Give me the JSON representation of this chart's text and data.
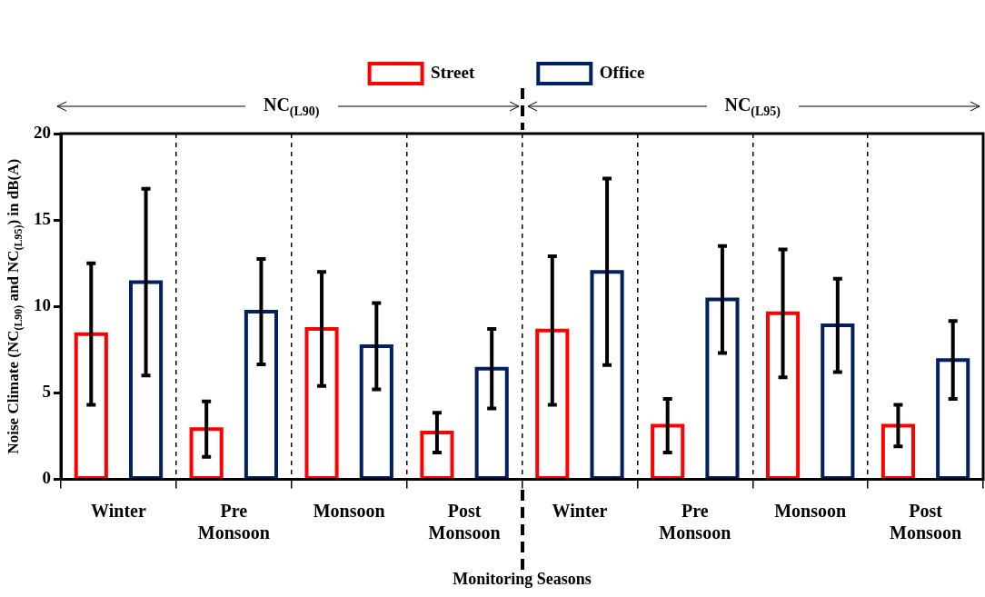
{
  "chart_data": {
    "type": "bar",
    "categories": [
      "Winter",
      "Pre Monsoon",
      "Monsoon",
      "Post Monsoon",
      "Winter",
      "Pre Monsoon",
      "Monsoon",
      "Post Monsoon"
    ],
    "series": [
      {
        "name": "Street",
        "color": "#ff0000",
        "values": [
          8.4,
          2.9,
          8.7,
          2.7,
          8.6,
          3.1,
          9.6,
          3.1
        ],
        "errors": [
          4.1,
          1.6,
          3.3,
          1.15,
          4.3,
          1.55,
          3.7,
          1.2
        ]
      },
      {
        "name": "Office",
        "color": "#002060",
        "values": [
          11.4,
          9.7,
          7.7,
          6.4,
          12.0,
          10.4,
          8.9,
          6.9
        ],
        "errors": [
          5.4,
          3.05,
          2.5,
          2.3,
          5.4,
          3.1,
          2.7,
          2.25
        ]
      }
    ],
    "xlabel": "Monitoring Seasons",
    "ylabel": "Noise Climate (NC$_{(L90)}$ and NC$_{(L95)}$) in dB(A)",
    "annotations": [
      "NC$_{(L90)}$",
      "NC$_{(L95)}$"
    ],
    "ylim": [
      0,
      20
    ],
    "yticks": [
      0,
      5,
      10,
      15,
      20
    ],
    "grid": "x",
    "legend": "top"
  }
}
